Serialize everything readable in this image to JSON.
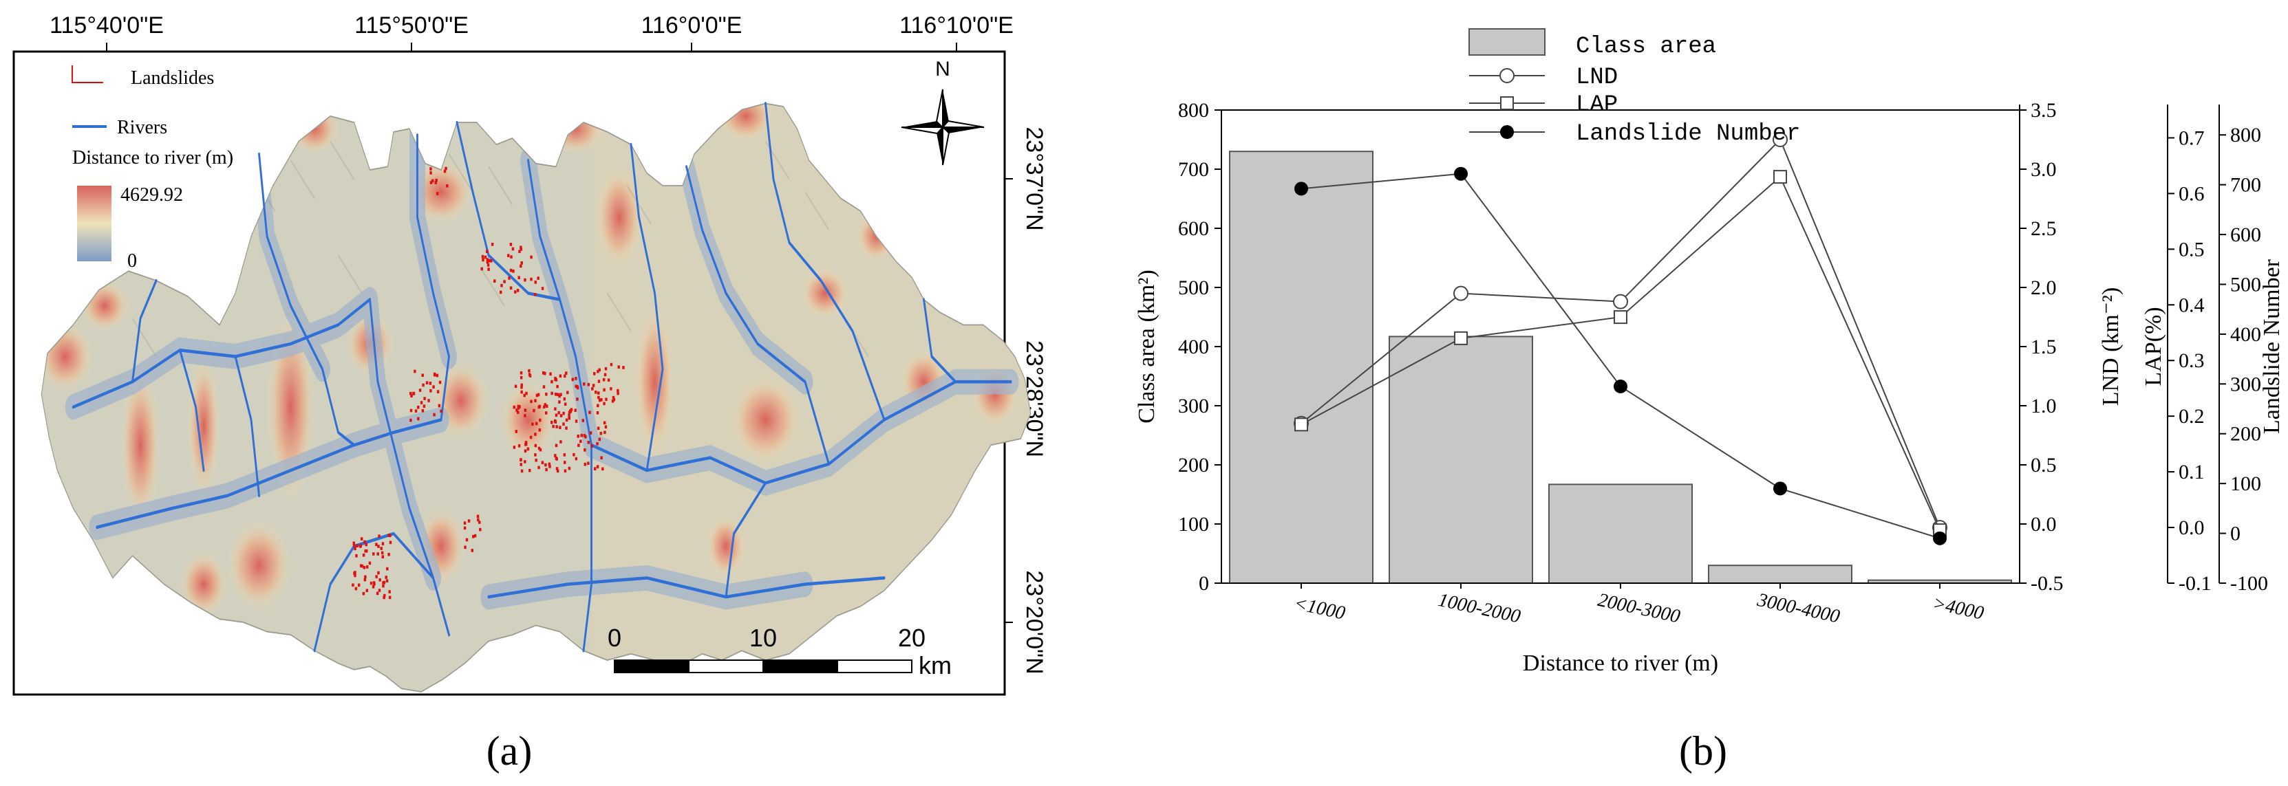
{
  "panel_a": {
    "label": "(a)",
    "coords": {
      "top": [
        "115°40'0\"E",
        "115°50'0\"E",
        "116°0'0\"E",
        "116°10'0\"E"
      ],
      "right": [
        "23°37'0\"N",
        "23°28'30\"N",
        "23°20'0\"N"
      ]
    },
    "legend": {
      "landslides": "Landslides",
      "rivers": "Rivers",
      "distance_title": "Distance to river (m)",
      "max_value": "4629.92",
      "min_value": "0"
    },
    "north": "N",
    "scale": {
      "ticks": [
        "0",
        "10",
        "20"
      ],
      "unit": "km"
    },
    "colors": {
      "river": "#2f6fd6",
      "landslide": "#e01010",
      "high": "#d9645a",
      "mid": "#efe4b8",
      "low": "#7d9cc7"
    }
  },
  "panel_b": {
    "label": "(b)",
    "legend": {
      "class_area": "Class area",
      "lnd": "LND",
      "lap": "LAP",
      "landslide_number": "Landslide Number"
    }
  },
  "chart_data": {
    "type": "bar",
    "title": "",
    "xlabel": "Distance to river (m)",
    "categories": [
      "<1000",
      "1000-2000",
      "2000-3000",
      "3000-4000",
      ">4000"
    ],
    "axes": {
      "class_area": {
        "label": "Class area (km²)",
        "range": [
          0,
          800
        ],
        "ticks": [
          "0",
          "100",
          "200",
          "300",
          "400",
          "500",
          "600",
          "700",
          "800"
        ]
      },
      "lnd": {
        "label": "LND (km⁻²)",
        "range": [
          -0.5,
          3.5
        ],
        "ticks": [
          "-0.5",
          "0.0",
          "0.5",
          "1.0",
          "1.5",
          "2.0",
          "2.5",
          "3.0",
          "3.5"
        ]
      },
      "lap": {
        "label": "LAP(%)",
        "range": [
          -0.1,
          0.75
        ],
        "ticks": [
          "-0.1",
          "0.0",
          "0.1",
          "0.2",
          "0.3",
          "0.4",
          "0.5",
          "0.6",
          "0.7"
        ]
      },
      "landslide_number": {
        "label": "Landslide Number",
        "range": [
          -100,
          850
        ],
        "ticks": [
          "-100",
          "0",
          "100",
          "200",
          "300",
          "400",
          "500",
          "600",
          "700",
          "800"
        ]
      }
    },
    "series": [
      {
        "name": "Class area",
        "kind": "bar",
        "axis": "class_area",
        "values": [
          730,
          417,
          167,
          30,
          5
        ]
      },
      {
        "name": "LND",
        "kind": "line",
        "marker": "open-circle",
        "axis": "lnd",
        "values": [
          0.85,
          1.95,
          1.88,
          3.25,
          -0.03
        ]
      },
      {
        "name": "LAP",
        "kind": "line",
        "marker": "open-square",
        "axis": "lap",
        "values": [
          0.185,
          0.34,
          0.378,
          0.63,
          -0.005
        ]
      },
      {
        "name": "Landslide Number",
        "kind": "line",
        "marker": "filled-circle",
        "axis": "landslide_number",
        "values": [
          692,
          722,
          295,
          90,
          -10
        ]
      }
    ]
  }
}
